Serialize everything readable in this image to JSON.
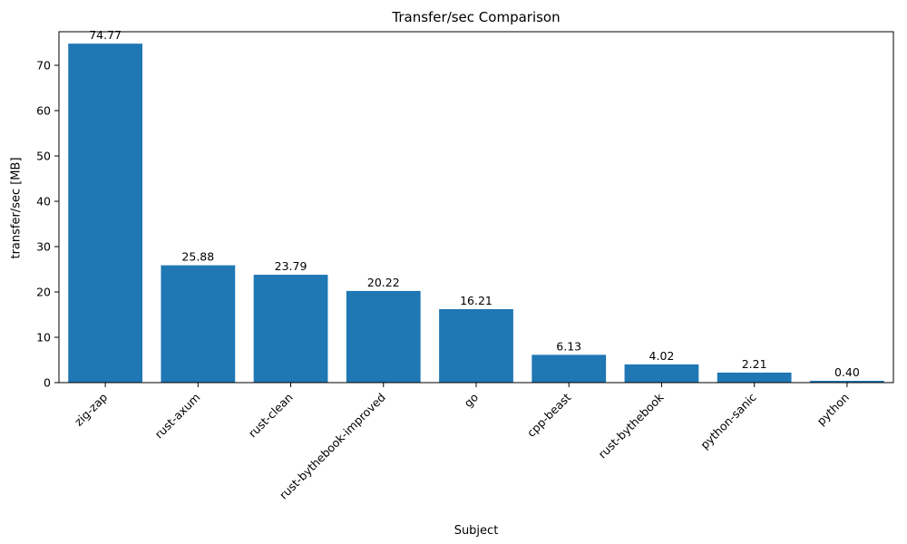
{
  "chart_data": {
    "type": "bar",
    "title": "Transfer/sec Comparison",
    "xlabel": "Subject",
    "ylabel": "transfer/sec [MB]",
    "categories": [
      "zig-zap",
      "rust-axum",
      "rust-clean",
      "rust-bythebook-improved",
      "go",
      "cpp-beast",
      "rust-bythebook",
      "python-sanic",
      "python"
    ],
    "values": [
      74.77,
      25.88,
      23.79,
      20.22,
      16.21,
      6.13,
      4.02,
      2.21,
      0.4
    ],
    "value_labels": [
      "74.77",
      "25.88",
      "23.79",
      "20.22",
      "16.21",
      "6.13",
      "4.02",
      "2.21",
      "0.40"
    ],
    "ylim": [
      0,
      77.4
    ],
    "yticks": [
      0,
      10,
      20,
      30,
      40,
      50,
      60,
      70
    ],
    "bar_color": "#1f77b4",
    "axis_color": "#000000",
    "grid": false,
    "legend": "none"
  }
}
